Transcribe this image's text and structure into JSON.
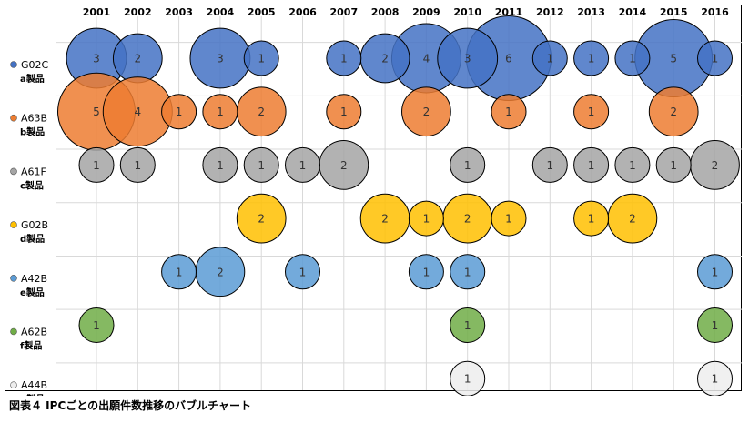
{
  "caption": "図表４ IPCごとの出願件数推移のバブルチャート",
  "chart_data": {
    "type": "scatter",
    "subtype": "bubble",
    "title": "",
    "categories": [
      "2001",
      "2002",
      "2003",
      "2004",
      "2005",
      "2006",
      "2007",
      "2008",
      "2009",
      "2010",
      "2011",
      "2012",
      "2013",
      "2014",
      "2015",
      "2016"
    ],
    "grid": true,
    "series": [
      {
        "code": "G02C",
        "product": "a製品",
        "color": "#4472C4",
        "points": [
          {
            "x": "2001",
            "v": 3
          },
          {
            "x": "2002",
            "v": 2
          },
          {
            "x": "2004",
            "v": 3
          },
          {
            "x": "2005",
            "v": 1
          },
          {
            "x": "2007",
            "v": 1
          },
          {
            "x": "2008",
            "v": 2
          },
          {
            "x": "2009",
            "v": 4
          },
          {
            "x": "2010",
            "v": 3
          },
          {
            "x": "2011",
            "v": 6
          },
          {
            "x": "2012",
            "v": 1
          },
          {
            "x": "2013",
            "v": 1
          },
          {
            "x": "2014",
            "v": 1
          },
          {
            "x": "2015",
            "v": 5
          },
          {
            "x": "2016",
            "v": 1
          }
        ]
      },
      {
        "code": "A63B",
        "product": "b製品",
        "color": "#ED7D31",
        "points": [
          {
            "x": "2001",
            "v": 5
          },
          {
            "x": "2002",
            "v": 4
          },
          {
            "x": "2003",
            "v": 1
          },
          {
            "x": "2004",
            "v": 1
          },
          {
            "x": "2005",
            "v": 2
          },
          {
            "x": "2007",
            "v": 1
          },
          {
            "x": "2009",
            "v": 2
          },
          {
            "x": "2011",
            "v": 1
          },
          {
            "x": "2013",
            "v": 1
          },
          {
            "x": "2015",
            "v": 2
          }
        ]
      },
      {
        "code": "A61F",
        "product": "c製品",
        "color": "#A5A5A5",
        "points": [
          {
            "x": "2001",
            "v": 1
          },
          {
            "x": "2002",
            "v": 1
          },
          {
            "x": "2004",
            "v": 1
          },
          {
            "x": "2005",
            "v": 1
          },
          {
            "x": "2006",
            "v": 1
          },
          {
            "x": "2007",
            "v": 2
          },
          {
            "x": "2010",
            "v": 1
          },
          {
            "x": "2012",
            "v": 1
          },
          {
            "x": "2013",
            "v": 1
          },
          {
            "x": "2014",
            "v": 1
          },
          {
            "x": "2015",
            "v": 1
          },
          {
            "x": "2016",
            "v": 2
          }
        ]
      },
      {
        "code": "G02B",
        "product": "d製品",
        "color": "#FFC000",
        "points": [
          {
            "x": "2005",
            "v": 2
          },
          {
            "x": "2008",
            "v": 2
          },
          {
            "x": "2009",
            "v": 1
          },
          {
            "x": "2010",
            "v": 2
          },
          {
            "x": "2011",
            "v": 1
          },
          {
            "x": "2013",
            "v": 1
          },
          {
            "x": "2014",
            "v": 2
          }
        ]
      },
      {
        "code": "A42B",
        "product": "e製品",
        "color": "#5B9BD5",
        "points": [
          {
            "x": "2003",
            "v": 1
          },
          {
            "x": "2004",
            "v": 2
          },
          {
            "x": "2006",
            "v": 1
          },
          {
            "x": "2009",
            "v": 1
          },
          {
            "x": "2010",
            "v": 1
          },
          {
            "x": "2016",
            "v": 1
          }
        ]
      },
      {
        "code": "A62B",
        "product": "f製品",
        "color": "#70AD47",
        "points": [
          {
            "x": "2001",
            "v": 1
          },
          {
            "x": "2010",
            "v": 1
          },
          {
            "x": "2016",
            "v": 1
          }
        ]
      },
      {
        "code": "A44B",
        "product": "g製品",
        "color": "#EDEDED",
        "points": [
          {
            "x": "2010",
            "v": 1
          },
          {
            "x": "2016",
            "v": 1
          }
        ]
      }
    ]
  }
}
